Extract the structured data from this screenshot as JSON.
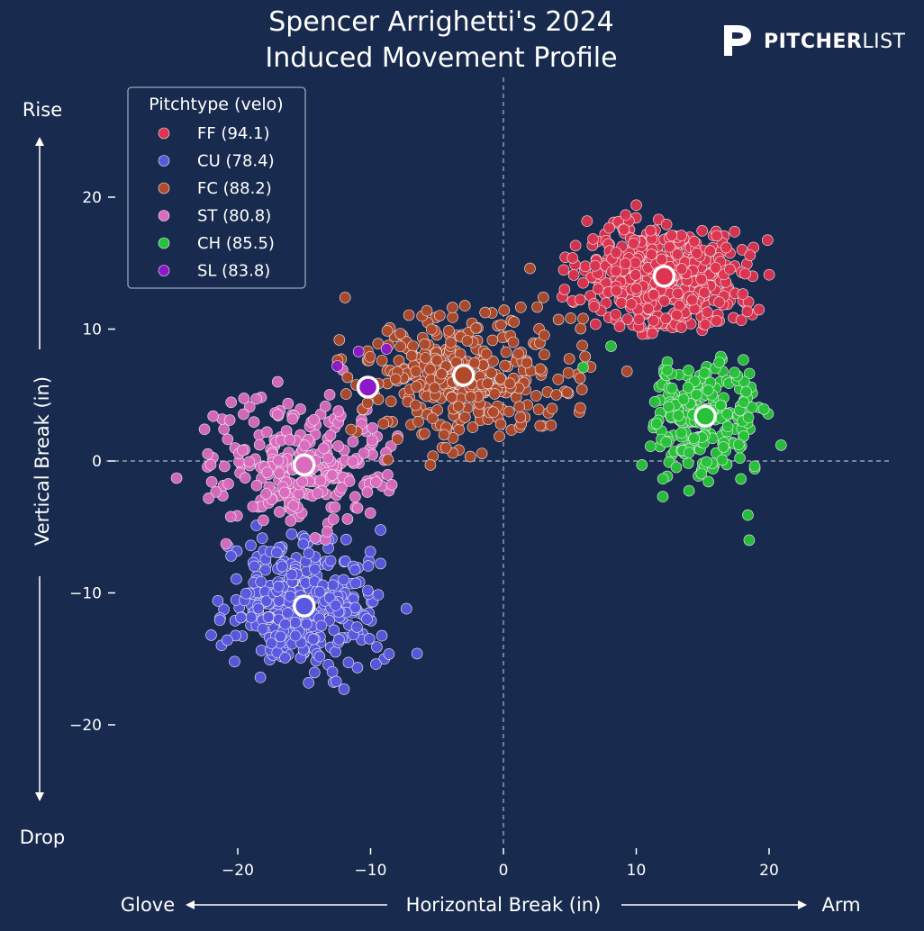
{
  "chart_data": {
    "type": "scatter",
    "title": [
      "Spencer Arrighetti's 2024",
      "Induced Movement Profile"
    ],
    "xlabel": "Horizontal Break (in)",
    "ylabel": "Vertical Break (in)",
    "xlim": [
      -29,
      29
    ],
    "ylim": [
      -28,
      28
    ],
    "xticks": [
      -20,
      -10,
      0,
      10,
      20
    ],
    "yticks": [
      -20,
      -10,
      0,
      10,
      20
    ],
    "x_direction_labels": {
      "left": "Glove",
      "right": "Arm"
    },
    "y_direction_labels": {
      "top": "Rise",
      "bottom": "Drop"
    },
    "reference_lines": {
      "x": 0,
      "y": 0,
      "style": "dashed"
    },
    "legend": {
      "title": "Pitchtype (velo)",
      "position": "top-left"
    },
    "series": [
      {
        "name": "FF",
        "velo": "94.1",
        "label": "FF (94.1)",
        "color": "#dc3550",
        "mean": [
          12.1,
          14.0
        ],
        "spread": [
          3.3,
          2.0
        ],
        "count": 480,
        "extras": [
          [
            10.0,
            19.4
          ],
          [
            5.2,
            15.4
          ],
          [
            6.9,
            14.8
          ],
          [
            4.6,
            13.0
          ],
          [
            6.0,
            13.5
          ],
          [
            8.5,
            12.9
          ],
          [
            9.8,
            16.5
          ],
          [
            18.2,
            14.2
          ]
        ]
      },
      {
        "name": "CU",
        "velo": "78.4",
        "label": "CU (78.4)",
        "color": "#5b58e0",
        "mean": [
          -15.0,
          -11.0
        ],
        "spread": [
          2.7,
          2.6
        ],
        "count": 340,
        "extras": [
          [
            -21.5,
            -10.6
          ],
          [
            -20.5,
            -7.2
          ],
          [
            -6.5,
            -14.6
          ],
          [
            -12.0,
            -17.3
          ],
          [
            -9.6,
            -15.4
          ],
          [
            -18.3,
            -16.4
          ],
          [
            -7.3,
            -11.2
          ],
          [
            -22.0,
            -13.2
          ]
        ]
      },
      {
        "name": "FC",
        "velo": "88.2",
        "label": "FC (88.2)",
        "color": "#b04a2b",
        "mean": [
          -3.0,
          6.5
        ],
        "spread": [
          4.0,
          2.6
        ],
        "count": 360,
        "extras": [
          [
            2.0,
            14.6
          ],
          [
            4.8,
            5.2
          ],
          [
            3.0,
            12.4
          ],
          [
            -0.2,
            2.8
          ],
          [
            -8.7,
            0.1
          ],
          [
            -5.5,
            -0.3
          ],
          [
            9.3,
            6.8
          ],
          [
            6.0,
            10.8
          ]
        ]
      },
      {
        "name": "ST",
        "velo": "80.8",
        "label": "ST (80.8)",
        "color": "#da6bbf",
        "mean": [
          -15.0,
          -0.3
        ],
        "spread": [
          3.1,
          2.5
        ],
        "count": 250,
        "extras": [
          [
            -24.6,
            -1.3
          ],
          [
            -22.5,
            2.4
          ],
          [
            -18.6,
            4.7
          ],
          [
            -8.4,
            -1.8
          ],
          [
            -10.6,
            3.9
          ],
          [
            -12.1,
            6.9
          ],
          [
            -17.0,
            6.0
          ],
          [
            -21.0,
            -0.4
          ]
        ]
      },
      {
        "name": "CH",
        "velo": "85.5",
        "label": "CH (85.5)",
        "color": "#28c23a",
        "mean": [
          15.2,
          3.4
        ],
        "spread": [
          2.0,
          2.4
        ],
        "count": 230,
        "extras": [
          [
            18.5,
            -6.0
          ],
          [
            18.4,
            -4.1
          ],
          [
            6.0,
            7.1
          ],
          [
            8.1,
            8.7
          ],
          [
            20.9,
            1.2
          ],
          [
            13.0,
            10.2
          ],
          [
            12.0,
            -2.7
          ],
          [
            17.4,
            6.7
          ]
        ]
      },
      {
        "name": "SL",
        "velo": "83.8",
        "label": "SL (83.8)",
        "color": "#8d18c9",
        "mean": [
          -10.2,
          5.6
        ],
        "spread": [
          0.0,
          0.0
        ],
        "count": 0,
        "extras": [
          [
            -10.9,
            8.3
          ],
          [
            -8.8,
            8.5
          ],
          [
            -12.5,
            7.2
          ]
        ]
      }
    ]
  },
  "branding": {
    "logo_text_bold": "PITCHER",
    "logo_text_light": "LIST"
  }
}
